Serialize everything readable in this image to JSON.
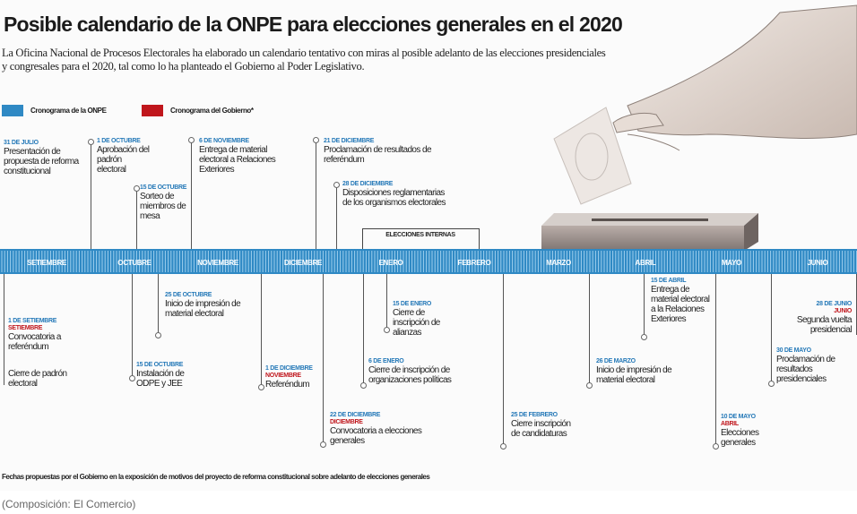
{
  "title": "Posible calendario de la ONPE para elecciones generales en el 2020",
  "subtitle": "La Oficina Nacional de Procesos Electorales ha elaborado un calendario tentativo con miras al posible adelanto de las elecciones presidenciales y congresales para el 2020, tal como lo ha planteado el Gobierno al Poder Legislativo.",
  "legend": [
    {
      "label": "Cronograma de la ONPE",
      "color": "#2f89c4"
    },
    {
      "label": "Cronograma del Gobierno*",
      "color": "#c0161c"
    }
  ],
  "months": [
    "SETIEMBRE",
    "OCTUBRE",
    "NOVIEMBRE",
    "DICIEMBRE",
    "ENERO",
    "FEBRERO",
    "MARZO",
    "ABRIL",
    "MAYO",
    "JUNIO"
  ],
  "internal_elections_label": "ELECCIONES INTERNAS",
  "events_above": [
    {
      "date": "31 DE JULIO",
      "text": "Presentación de propuesta de reforma constitucional"
    },
    {
      "date": "1 DE OCTUBRE",
      "text": "Aprobación del padrón electoral"
    },
    {
      "date": "15 DE OCTUBRE",
      "text": "Sorteo de miembros de mesa"
    },
    {
      "date": "6 DE NOVIEMBRE",
      "text": "Entrega de material electoral a Relaciones Exteriores"
    },
    {
      "date": "21 DE DICIEMBRE",
      "text": "Proclamación de resultados de referéndum"
    },
    {
      "date": "28 DE DICIEMBRE",
      "text": "Disposiciones reglamentarias de los organismos electorales"
    }
  ],
  "events_below": [
    {
      "date": "1 DE SETIEMBRE",
      "gov_date": "SETIEMBRE",
      "text": "Convocatoria a referéndum"
    },
    {
      "text": "Cierre de padrón electoral"
    },
    {
      "date": "25 DE OCTUBRE",
      "text": "Inicio de impresión de material electoral"
    },
    {
      "date": "15 DE OCTUBRE",
      "text": "Instalación de ODPE y JEE"
    },
    {
      "date": "1 DE DICIEMBRE",
      "gov_date": "NOVIEMBRE",
      "text": "Referéndum"
    },
    {
      "date": "22 DE DICIEMBRE",
      "gov_date": "DICIEMBRE",
      "text": "Convocatoria a elecciones generales"
    },
    {
      "date": "15 DE ENERO",
      "text": "Cierre de inscripción de alianzas"
    },
    {
      "date": "6 DE ENERO",
      "text": "Cierre de inscripción de organizaciones políticas"
    },
    {
      "date": "25 DE FEBRERO",
      "text": "Cierre inscripción de candidaturas"
    },
    {
      "date": "26 DE MARZO",
      "text": "Inicio de impresión de material electoral"
    },
    {
      "date": "15 DE ABRIL",
      "text": "Entrega de material electoral a la Relaciones Exteriores"
    },
    {
      "date": "10 DE MAYO",
      "gov_date": "ABRIL",
      "text": "Elecciones generales"
    },
    {
      "date": "28 DE JUNIO",
      "gov_date": "JUNIO",
      "text": "Segunda vuelta presidencial"
    },
    {
      "date": "30 DE MAYO",
      "text": "Proclamación de resultados presidenciales"
    }
  ],
  "footnote": "Fechas propuestas por el Gobierno en la exposición de motivos del proyecto de reforma constitucional sobre adelanto de elecciones generales",
  "credit": "(Composición: El Comercio)",
  "colors": {
    "onpe_blue": "#2f89c4",
    "gov_red": "#c0161c"
  }
}
